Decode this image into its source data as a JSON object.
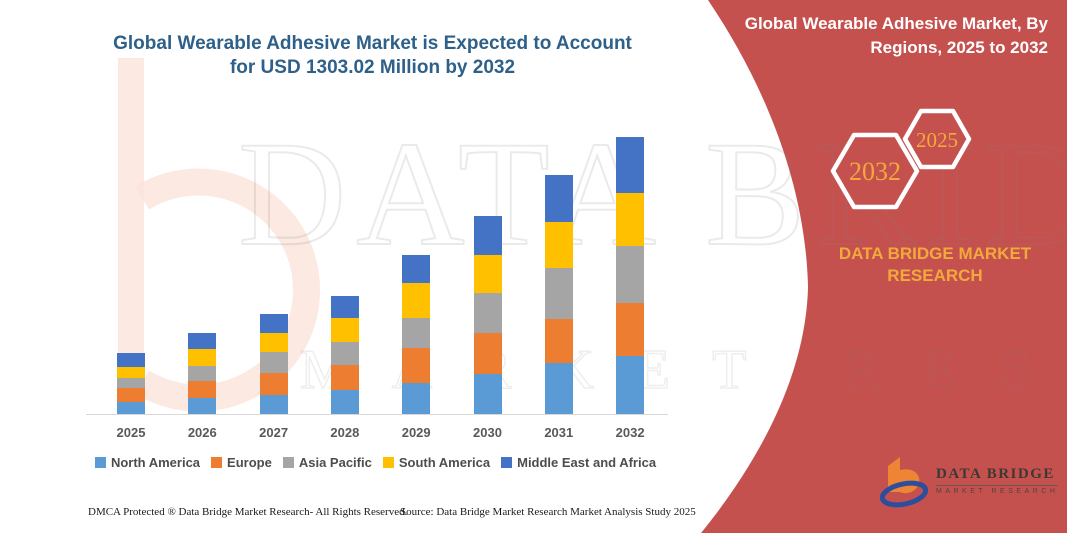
{
  "page": {
    "background": "#ffffff",
    "accent_red": "#c5514f",
    "accent_yellow": "#f2a93b"
  },
  "watermark": {
    "line1": "DATA BRIDGE",
    "line2": "MARKET RESEARCH"
  },
  "chart_data": {
    "type": "bar",
    "stacked": true,
    "title": "Global Wearable Adhesive Market is Expected to Account for USD 1303.02 Million by 2032",
    "unit": "USD Million",
    "categories": [
      "2025",
      "2026",
      "2027",
      "2028",
      "2029",
      "2030",
      "2031",
      "2032"
    ],
    "series": [
      {
        "name": "North America",
        "color": "#5b9bd5",
        "values": [
          58,
          77,
          91,
          111,
          148,
          189,
          242,
          271
        ]
      },
      {
        "name": "Europe",
        "color": "#ed7d31",
        "values": [
          64,
          77,
          103,
          118,
          161,
          191,
          204,
          251
        ]
      },
      {
        "name": "Asia Pacific",
        "color": "#a5a5a5",
        "values": [
          48,
          74,
          98,
          108,
          142,
          188,
          240,
          269
        ]
      },
      {
        "name": "South America",
        "color": "#ffc000",
        "values": [
          50,
          76,
          88,
          115,
          166,
          180,
          215,
          248
        ]
      },
      {
        "name": "Middle East and Africa",
        "color": "#4472c4",
        "values": [
          65,
          76,
          90,
          105,
          133,
          184,
          221,
          264.02
        ]
      }
    ],
    "totals_by_year": [
      285,
      380,
      470,
      557,
      750,
      932,
      1122,
      1303.02
    ],
    "ylim": [
      0,
      1400
    ],
    "grid": false,
    "legend_position": "bottom",
    "xlabel": "",
    "ylabel": ""
  },
  "right_panel": {
    "title": "Global Wearable Adhesive Market, By Regions, 2025 to 2032",
    "hexagon_years": {
      "back": "2032",
      "front": "2025"
    },
    "brand_text": "DATA BRIDGE MARKET RESEARCH",
    "logo": {
      "name": "DATA BRIDGE",
      "tagline": "MARKET RESEARCH"
    }
  },
  "footer": {
    "dmca": "DMCA Protected ® Data Bridge Market Research-  All Rights Reserved.",
    "source": "Source: Data Bridge Market Research  Market Analysis Study 2025"
  }
}
